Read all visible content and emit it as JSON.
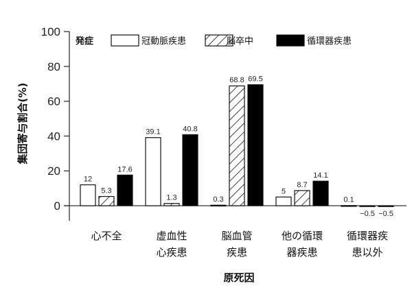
{
  "chart_data": {
    "type": "bar",
    "title": "",
    "xlabel": "原死因",
    "ylabel": "集団寄与割合(%)",
    "ylim": [
      0,
      100
    ],
    "yticks": [
      0,
      20,
      40,
      60,
      80,
      100
    ],
    "legend_title": "発症",
    "legend_position": "top",
    "grid": false,
    "categories": [
      "心不全",
      "虚血性心疾患",
      "脳血管疾患",
      "他の循環器疾患",
      "循環器疾患以外"
    ],
    "category_lines": [
      [
        "心不全"
      ],
      [
        "虚血性",
        "心疾患"
      ],
      [
        "脳血管",
        "疾患"
      ],
      [
        "他の循環",
        "器疾患"
      ],
      [
        "循環器疾",
        "患以外"
      ]
    ],
    "series": [
      {
        "name": "冠動脈疾患",
        "fill": "white",
        "values": [
          12,
          39.1,
          0.3,
          5,
          0.1
        ],
        "labels": [
          "12",
          "39.1",
          "0.3",
          "5",
          "0.1"
        ]
      },
      {
        "name": "脳卒中",
        "fill": "hatch",
        "values": [
          5.3,
          1.3,
          68.8,
          8.7,
          -0.5
        ],
        "labels": [
          "5.3",
          "1.3",
          "68.8",
          "8.7",
          "−0.5"
        ]
      },
      {
        "name": "循環器疾患",
        "fill": "black",
        "values": [
          17.6,
          40.8,
          69.5,
          14.1,
          -0.5
        ],
        "labels": [
          "17.6",
          "40.8",
          "69.5",
          "14.1",
          "−0.5"
        ]
      }
    ]
  }
}
